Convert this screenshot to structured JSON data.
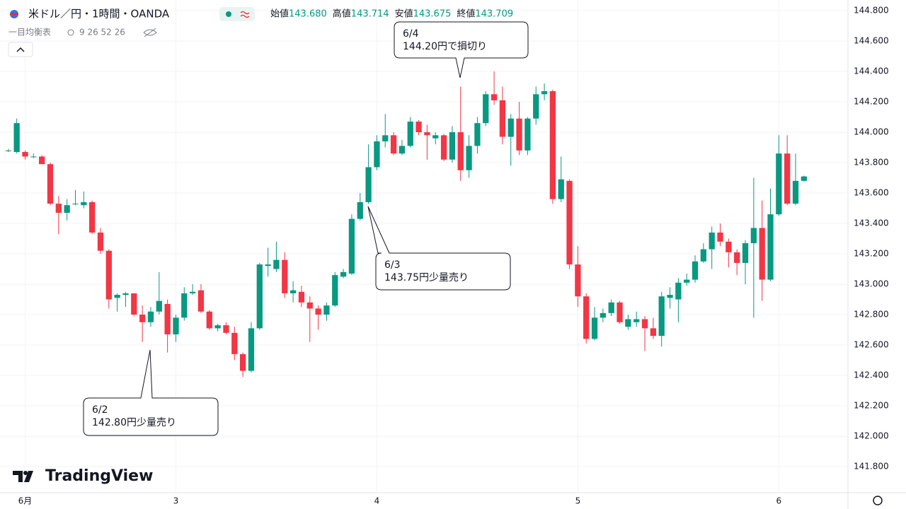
{
  "chart_data": {
    "type": "candlestick",
    "title": "米ドル／円・1時間・OANDA",
    "ohlc_header": [
      {
        "label": "始値",
        "value": "143.680"
      },
      {
        "label": "高値",
        "value": "143.714"
      },
      {
        "label": "安値",
        "value": "143.675"
      },
      {
        "label": "終値",
        "value": "143.709"
      }
    ],
    "indicator": {
      "name": "一目均衡表",
      "params": "9 26 52 26"
    },
    "brand": "TradingView",
    "up_color": "#089981",
    "down_color": "#f23645",
    "grid": true,
    "x": [
      -2,
      -1,
      0,
      1,
      2,
      3,
      4,
      5,
      6,
      7,
      8,
      9,
      10,
      11,
      12,
      13,
      14,
      15,
      16,
      17,
      18,
      19,
      20,
      21,
      22,
      23,
      24,
      25,
      26,
      27,
      28,
      29,
      30,
      31,
      32,
      33,
      34,
      35,
      36,
      37,
      38,
      39,
      40,
      41,
      42,
      43,
      44,
      45,
      46,
      47,
      48,
      49,
      50,
      51,
      52,
      53,
      54,
      55,
      56,
      57,
      58,
      59,
      60,
      61,
      62,
      63,
      64,
      65,
      66,
      67,
      68,
      69,
      70,
      71,
      72,
      73,
      74,
      75,
      76,
      77,
      78,
      79,
      80,
      81,
      82,
      83,
      84,
      85,
      86,
      87,
      88,
      89,
      90,
      91,
      92,
      93
    ],
    "open": [
      143.88,
      143.87,
      143.87,
      143.84,
      143.84,
      143.79,
      143.53,
      143.47,
      143.53,
      143.52,
      143.54,
      143.34,
      143.22,
      142.91,
      142.93,
      142.94,
      142.8,
      142.75,
      142.82,
      142.87,
      142.67,
      142.78,
      142.94,
      142.96,
      142.82,
      142.71,
      142.73,
      142.68,
      142.54,
      142.43,
      142.71,
      143.12,
      143.1,
      143.16,
      142.94,
      142.95,
      142.88,
      142.84,
      142.8,
      142.86,
      143.05,
      143.07,
      143.43,
      143.54,
      143.77,
      143.94,
      143.98,
      143.86,
      143.91,
      144.07,
      144.0,
      143.96,
      143.98,
      143.82,
      144.0,
      143.75,
      143.91,
      144.06,
      144.25,
      144.21,
      143.97,
      144.09,
      143.88,
      144.09,
      144.25,
      144.27,
      143.56,
      143.68,
      143.13,
      142.92,
      142.64,
      142.78,
      142.81,
      142.88,
      142.72,
      142.75,
      142.77,
      142.71,
      142.66,
      142.91,
      142.9,
      143.01,
      143.03,
      143.15,
      143.23,
      143.34,
      143.28,
      143.21,
      143.14,
      143.27,
      143.37,
      143.03,
      143.46,
      143.86,
      143.53,
      143.68
    ],
    "high": [
      143.89,
      144.09,
      143.88,
      143.86,
      143.85,
      143.8,
      143.58,
      143.56,
      143.62,
      143.61,
      143.55,
      143.37,
      143.23,
      142.94,
      142.95,
      142.94,
      142.86,
      142.85,
      143.08,
      142.9,
      142.8,
      142.98,
      143.0,
      143.0,
      142.83,
      142.74,
      142.75,
      142.72,
      142.55,
      142.75,
      143.14,
      143.24,
      143.28,
      143.21,
      143.02,
      142.99,
      142.92,
      142.86,
      142.88,
      143.08,
      143.1,
      143.46,
      143.6,
      143.92,
      143.98,
      144.12,
      144.0,
      143.95,
      144.1,
      144.08,
      144.05,
      144.0,
      143.99,
      144.04,
      144.3,
      143.98,
      144.1,
      144.27,
      144.4,
      144.3,
      144.12,
      144.2,
      144.1,
      144.3,
      144.32,
      144.28,
      143.84,
      143.69,
      143.25,
      142.94,
      142.85,
      142.84,
      142.9,
      142.89,
      142.8,
      142.82,
      142.79,
      142.78,
      142.95,
      142.98,
      143.04,
      143.07,
      143.19,
      143.27,
      143.38,
      143.4,
      143.3,
      143.23,
      143.29,
      143.7,
      143.55,
      143.63,
      143.98,
      143.98,
      143.86,
      143.714
    ],
    "low": [
      143.87,
      143.86,
      143.82,
      143.83,
      143.79,
      143.52,
      143.33,
      143.42,
      143.52,
      143.5,
      143.33,
      143.2,
      142.84,
      142.82,
      142.85,
      142.79,
      142.62,
      142.72,
      142.8,
      142.55,
      142.62,
      142.76,
      142.93,
      142.81,
      142.7,
      142.69,
      142.67,
      142.5,
      142.39,
      142.42,
      142.7,
      143.05,
      143.08,
      142.91,
      142.88,
      142.85,
      142.62,
      142.7,
      142.76,
      142.85,
      143.04,
      143.06,
      143.42,
      143.53,
      143.75,
      143.9,
      143.85,
      143.85,
      143.9,
      143.98,
      143.82,
      143.92,
      143.81,
      143.8,
      143.68,
      143.7,
      143.86,
      144.04,
      144.18,
      143.92,
      143.78,
      143.85,
      143.85,
      144.05,
      144.21,
      143.53,
      143.54,
      143.1,
      142.85,
      142.61,
      142.63,
      142.75,
      142.79,
      142.74,
      142.7,
      142.72,
      142.56,
      142.64,
      142.59,
      142.84,
      142.75,
      142.99,
      143.01,
      143.14,
      143.1,
      143.25,
      143.11,
      143.06,
      143.0,
      142.78,
      142.89,
      143.02,
      143.45,
      143.52,
      143.52,
      143.675
    ],
    "close": [
      143.88,
      144.06,
      143.84,
      143.84,
      143.79,
      143.53,
      143.47,
      143.52,
      143.53,
      143.54,
      143.34,
      143.22,
      142.9,
      142.93,
      142.94,
      142.8,
      142.75,
      142.82,
      142.89,
      142.67,
      142.78,
      142.94,
      142.95,
      142.82,
      142.71,
      142.73,
      142.68,
      142.54,
      142.43,
      142.71,
      143.13,
      143.13,
      143.16,
      142.94,
      142.96,
      142.88,
      142.84,
      142.8,
      142.86,
      143.06,
      143.08,
      143.43,
      143.54,
      143.77,
      143.94,
      143.98,
      143.86,
      143.91,
      144.07,
      144.0,
      143.98,
      143.98,
      143.82,
      144.0,
      143.75,
      143.91,
      144.06,
      144.25,
      144.21,
      143.97,
      144.09,
      143.88,
      144.09,
      144.25,
      144.27,
      143.56,
      143.69,
      143.13,
      142.92,
      142.64,
      142.78,
      142.81,
      142.88,
      142.75,
      142.77,
      142.77,
      142.71,
      142.66,
      142.92,
      142.93,
      143.01,
      143.03,
      143.15,
      143.23,
      143.34,
      143.28,
      143.21,
      143.14,
      143.27,
      143.37,
      143.03,
      143.46,
      143.86,
      143.53,
      143.68,
      143.709
    ],
    "xlim": [
      -3,
      98
    ],
    "xticks": [
      {
        "value": 0,
        "label": "6月"
      },
      {
        "value": 18,
        "label": "3"
      },
      {
        "value": 42,
        "label": "4"
      },
      {
        "value": 66,
        "label": "5"
      },
      {
        "value": 90,
        "label": "6"
      }
    ],
    "ylim": [
      141.614,
      144.87
    ],
    "yticks": [
      {
        "value": 141.8,
        "label": "141.800"
      },
      {
        "value": 142.0,
        "label": "142.000"
      },
      {
        "value": 142.2,
        "label": "142.200"
      },
      {
        "value": 142.4,
        "label": "142.400"
      },
      {
        "value": 142.6,
        "label": "142.600"
      },
      {
        "value": 142.8,
        "label": "142.800"
      },
      {
        "value": 143.0,
        "label": "143.000"
      },
      {
        "value": 143.2,
        "label": "143.200"
      },
      {
        "value": 143.4,
        "label": "143.400"
      },
      {
        "value": 143.6,
        "label": "143.600"
      },
      {
        "value": 143.8,
        "label": "143.800"
      },
      {
        "value": 144.0,
        "label": "144.000"
      },
      {
        "value": 144.2,
        "label": "144.200"
      },
      {
        "value": 144.4,
        "label": "144.400"
      },
      {
        "value": 144.6,
        "label": "144.600"
      },
      {
        "value": 144.8,
        "label": "144.800"
      }
    ],
    "annotations": [
      {
        "date": "6/2",
        "text": "142.80円少量売り"
      },
      {
        "date": "6/3",
        "text": "143.75円少量売り"
      },
      {
        "date": "6/4",
        "text": "144.20円で損切り"
      }
    ]
  }
}
